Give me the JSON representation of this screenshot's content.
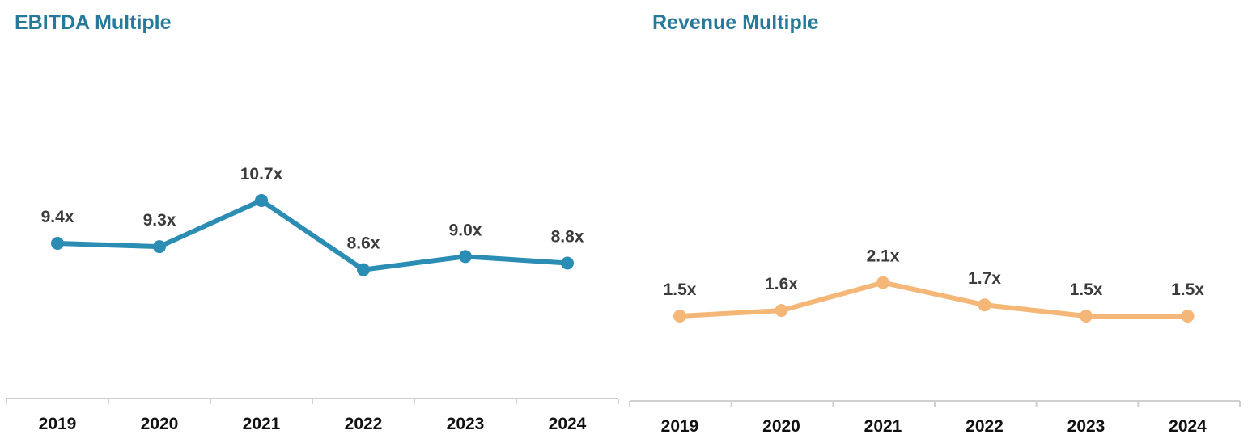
{
  "chart_data": [
    {
      "type": "line",
      "title": "EBITDA Multiple",
      "categories": [
        "2019",
        "2020",
        "2021",
        "2022",
        "2023",
        "2024"
      ],
      "values": [
        9.4,
        9.3,
        10.7,
        8.6,
        9.0,
        8.8
      ],
      "data_labels": [
        "9.4x",
        "9.3x",
        "10.7x",
        "8.6x",
        "9.0x",
        "8.8x"
      ],
      "color": "#2b8db3",
      "grid": false,
      "legend": "none"
    },
    {
      "type": "line",
      "title": "Revenue Multiple",
      "categories": [
        "2019",
        "2020",
        "2021",
        "2022",
        "2023",
        "2024"
      ],
      "values": [
        1.5,
        1.6,
        2.1,
        1.7,
        1.5,
        1.5
      ],
      "data_labels": [
        "1.5x",
        "1.6x",
        "2.1x",
        "1.7x",
        "1.5x",
        "1.5x"
      ],
      "color": "#f4b777",
      "grid": false,
      "legend": "none"
    }
  ]
}
